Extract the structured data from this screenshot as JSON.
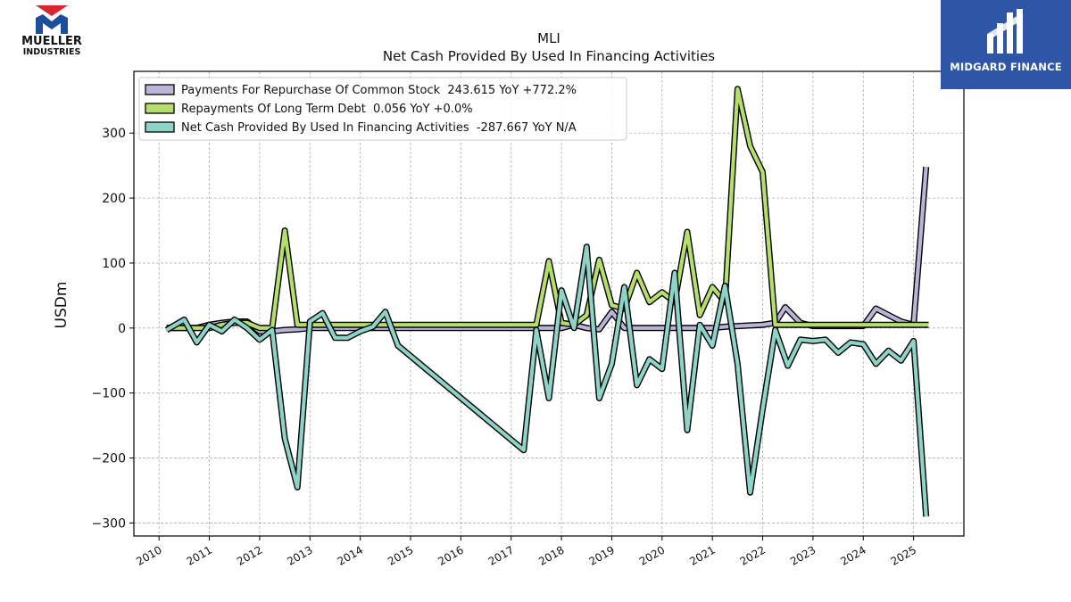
{
  "brand": {
    "left_logo_line1": "MUELLER",
    "left_logo_line2": "INDUSTRIES",
    "right_logo_text": "MIDGARD FINANCE"
  },
  "chart_data": {
    "type": "line",
    "title": "MLI",
    "subtitle": "Net Cash Provided By Used In Financing Activities",
    "ylabel": "USDm",
    "xlabel": "",
    "xlim": [
      2009.5,
      2026.0
    ],
    "ylim": [
      -320,
      395
    ],
    "x_ticks": [
      "2010",
      "2011",
      "2012",
      "2013",
      "2014",
      "2015",
      "2016",
      "2017",
      "2018",
      "2019",
      "2020",
      "2021",
      "2022",
      "2023",
      "2024",
      "2025"
    ],
    "y_ticks": [
      -300,
      -200,
      -100,
      0,
      100,
      200,
      300
    ],
    "y_tick_labels": [
      "−300",
      "−200",
      "−100",
      "0",
      "100",
      "200",
      "300"
    ],
    "grid": true,
    "legend_position": "top-left",
    "series": [
      {
        "name": "Payments For Repurchase Of Common Stock  243.615 YoY +772.2%",
        "color": "#bcb4d8",
        "points": [
          [
            2010.15,
            0
          ],
          [
            2010.5,
            0
          ],
          [
            2010.75,
            0
          ],
          [
            2011.0,
            5
          ],
          [
            2011.25,
            8
          ],
          [
            2011.5,
            10
          ],
          [
            2011.75,
            10
          ],
          [
            2012.0,
            -5
          ],
          [
            2012.25,
            -5
          ],
          [
            2012.5,
            -3
          ],
          [
            2012.75,
            -2
          ],
          [
            2013.0,
            0
          ],
          [
            2013.25,
            0
          ],
          [
            2013.5,
            0
          ],
          [
            2013.75,
            0
          ],
          [
            2014.0,
            0
          ],
          [
            2014.25,
            0
          ],
          [
            2014.5,
            0
          ],
          [
            2014.75,
            0
          ],
          [
            2017.25,
            0
          ],
          [
            2017.5,
            0
          ],
          [
            2017.75,
            0
          ],
          [
            2018.0,
            0
          ],
          [
            2018.25,
            5
          ],
          [
            2018.5,
            0
          ],
          [
            2018.75,
            -2
          ],
          [
            2019.0,
            25
          ],
          [
            2019.25,
            0
          ],
          [
            2019.5,
            0
          ],
          [
            2019.75,
            0
          ],
          [
            2020.0,
            0
          ],
          [
            2020.25,
            0
          ],
          [
            2020.5,
            0
          ],
          [
            2020.75,
            0
          ],
          [
            2021.0,
            0
          ],
          [
            2021.25,
            2
          ],
          [
            2021.5,
            3
          ],
          [
            2021.75,
            4
          ],
          [
            2022.0,
            5
          ],
          [
            2022.25,
            8
          ],
          [
            2022.45,
            32
          ],
          [
            2022.75,
            8
          ],
          [
            2023.0,
            3
          ],
          [
            2023.25,
            3
          ],
          [
            2023.5,
            3
          ],
          [
            2023.75,
            3
          ],
          [
            2024.0,
            3
          ],
          [
            2024.25,
            30
          ],
          [
            2024.5,
            20
          ],
          [
            2024.75,
            10
          ],
          [
            2025.0,
            5
          ],
          [
            2025.25,
            248
          ]
        ]
      },
      {
        "name": "Repayments Of Long Term Debt  0.056 YoY +0.0%",
        "color": "#b5de6c",
        "points": [
          [
            2010.15,
            0
          ],
          [
            2010.5,
            0
          ],
          [
            2010.75,
            0
          ],
          [
            2011.0,
            0
          ],
          [
            2011.25,
            5
          ],
          [
            2011.5,
            8
          ],
          [
            2011.75,
            8
          ],
          [
            2012.0,
            0
          ],
          [
            2012.25,
            0
          ],
          [
            2012.5,
            150
          ],
          [
            2012.75,
            5
          ],
          [
            2013.0,
            5
          ],
          [
            2013.25,
            5
          ],
          [
            2013.5,
            5
          ],
          [
            2013.75,
            5
          ],
          [
            2014.0,
            5
          ],
          [
            2014.25,
            5
          ],
          [
            2014.5,
            5
          ],
          [
            2014.75,
            5
          ],
          [
            2017.25,
            5
          ],
          [
            2017.5,
            5
          ],
          [
            2017.75,
            103
          ],
          [
            2018.0,
            8
          ],
          [
            2018.25,
            5
          ],
          [
            2018.5,
            20
          ],
          [
            2018.75,
            105
          ],
          [
            2019.0,
            35
          ],
          [
            2019.25,
            30
          ],
          [
            2019.5,
            85
          ],
          [
            2019.75,
            40
          ],
          [
            2020.0,
            55
          ],
          [
            2020.25,
            40
          ],
          [
            2020.5,
            148
          ],
          [
            2020.75,
            20
          ],
          [
            2021.0,
            63
          ],
          [
            2021.25,
            40
          ],
          [
            2021.5,
            368
          ],
          [
            2021.75,
            280
          ],
          [
            2022.0,
            240
          ],
          [
            2022.25,
            5
          ],
          [
            2022.5,
            5
          ],
          [
            2022.75,
            5
          ],
          [
            2023.0,
            5
          ],
          [
            2023.25,
            5
          ],
          [
            2023.5,
            5
          ],
          [
            2023.75,
            5
          ],
          [
            2024.0,
            5
          ],
          [
            2024.25,
            5
          ],
          [
            2024.5,
            5
          ],
          [
            2024.75,
            5
          ],
          [
            2025.0,
            5
          ],
          [
            2025.3,
            5
          ]
        ]
      },
      {
        "name": "Net Cash Provided By Used In Financing Activities  -287.667 YoY N/A",
        "color": "#8ed3c7",
        "points": [
          [
            2010.15,
            -3
          ],
          [
            2010.5,
            13
          ],
          [
            2010.75,
            -22
          ],
          [
            2011.0,
            5
          ],
          [
            2011.25,
            -5
          ],
          [
            2011.5,
            13
          ],
          [
            2011.75,
            0
          ],
          [
            2012.0,
            -18
          ],
          [
            2012.25,
            -3
          ],
          [
            2012.5,
            -170
          ],
          [
            2012.75,
            -245
          ],
          [
            2013.0,
            10
          ],
          [
            2013.25,
            23
          ],
          [
            2013.5,
            -15
          ],
          [
            2013.75,
            -15
          ],
          [
            2014.0,
            -5
          ],
          [
            2014.25,
            2
          ],
          [
            2014.5,
            25
          ],
          [
            2014.75,
            -27
          ],
          [
            2017.25,
            -188
          ],
          [
            2017.5,
            -3
          ],
          [
            2017.75,
            -108
          ],
          [
            2018.0,
            58
          ],
          [
            2018.25,
            0
          ],
          [
            2018.5,
            125
          ],
          [
            2018.75,
            -108
          ],
          [
            2019.0,
            -55
          ],
          [
            2019.25,
            63
          ],
          [
            2019.5,
            -88
          ],
          [
            2019.75,
            -48
          ],
          [
            2020.0,
            -63
          ],
          [
            2020.25,
            85
          ],
          [
            2020.5,
            -157
          ],
          [
            2020.75,
            5
          ],
          [
            2021.0,
            -27
          ],
          [
            2021.25,
            65
          ],
          [
            2021.5,
            -55
          ],
          [
            2021.75,
            -253
          ],
          [
            2022.0,
            -125
          ],
          [
            2022.25,
            -3
          ],
          [
            2022.5,
            -58
          ],
          [
            2022.75,
            -18
          ],
          [
            2023.0,
            -20
          ],
          [
            2023.25,
            -18
          ],
          [
            2023.5,
            -38
          ],
          [
            2023.75,
            -22
          ],
          [
            2024.0,
            -25
          ],
          [
            2024.25,
            -55
          ],
          [
            2024.5,
            -35
          ],
          [
            2024.75,
            -50
          ],
          [
            2025.0,
            -20
          ],
          [
            2025.25,
            -290
          ]
        ]
      }
    ]
  }
}
